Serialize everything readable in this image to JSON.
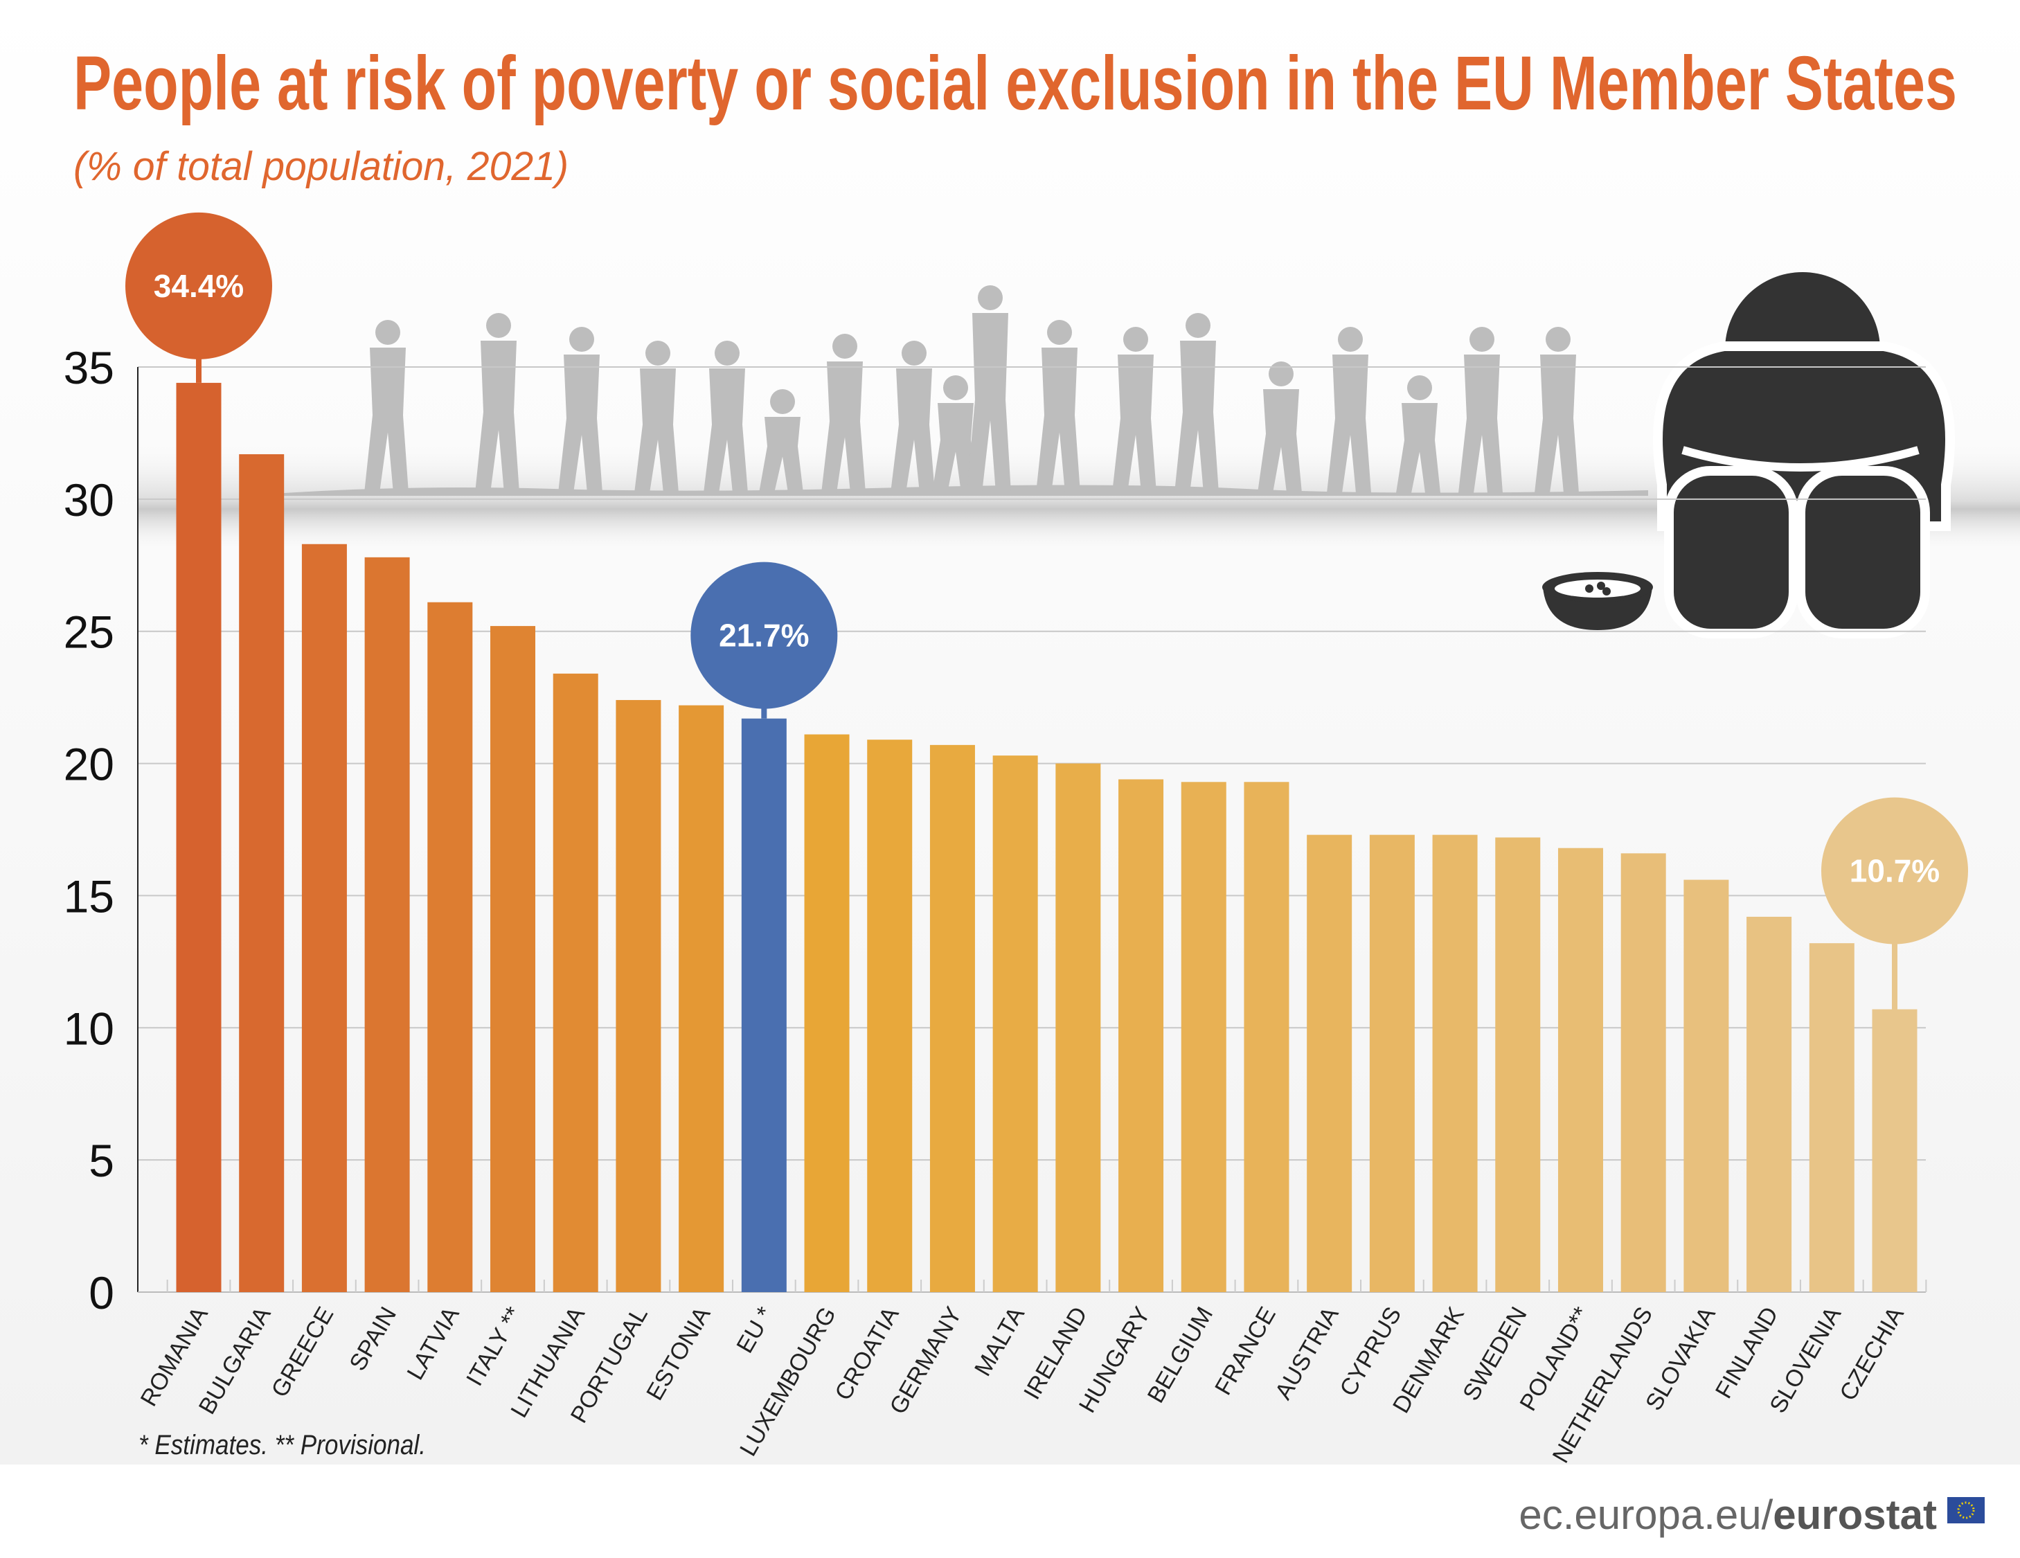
{
  "chart_data": {
    "type": "bar",
    "title": "People at risk of poverty or social exclusion in the EU Member States",
    "subtitle": "(% of total population, 2021)",
    "categories": [
      "ROMANIA",
      "BULGARIA",
      "GREECE",
      "SPAIN",
      "LATVIA",
      "ITALY **",
      "LITHUANIA",
      "PORTUGAL",
      "ESTONIA",
      "EU *",
      "LUXEMBOURG",
      "CROATIA",
      "GERMANY",
      "MALTA",
      "IRELAND",
      "HUNGARY",
      "BELGIUM",
      "FRANCE",
      "AUSTRIA",
      "CYPRUS",
      "DENMARK",
      "SWEDEN",
      "POLAND**",
      "NETHERLANDS",
      "SLOVAKIA",
      "FINLAND",
      "SLOVENIA",
      "CZECHIA"
    ],
    "values": [
      34.4,
      31.7,
      28.3,
      27.8,
      26.1,
      25.2,
      23.4,
      22.4,
      22.2,
      21.7,
      21.1,
      20.9,
      20.7,
      20.3,
      20.0,
      19.4,
      19.3,
      19.3,
      17.3,
      17.3,
      17.3,
      17.2,
      16.8,
      16.6,
      15.6,
      14.2,
      13.2,
      10.7
    ],
    "ylim": [
      0,
      35
    ],
    "yticks": [
      0,
      5,
      10,
      15,
      20,
      25,
      30,
      35
    ],
    "ytick_labels": [
      "0",
      "5",
      "10",
      "15",
      "20",
      "25",
      "30",
      "35"
    ],
    "grid": true,
    "callouts": [
      {
        "category": "ROMANIA",
        "label": "34.4%",
        "color": "#d6622e"
      },
      {
        "category": "EU *",
        "label": "21.7%",
        "color": "#4a6fb0"
      },
      {
        "category": "CZECHIA",
        "label": "10.7%",
        "color": "#e8c68c"
      }
    ],
    "colors": {
      "high": "#d6622e",
      "mid": "#e8a636",
      "low": "#e8c68c",
      "eu": "#4a6fb0"
    }
  },
  "footnote": "* Estimates. ** Provisional.",
  "source": {
    "domain": "ec.europa.eu/",
    "brand": "eurostat"
  }
}
